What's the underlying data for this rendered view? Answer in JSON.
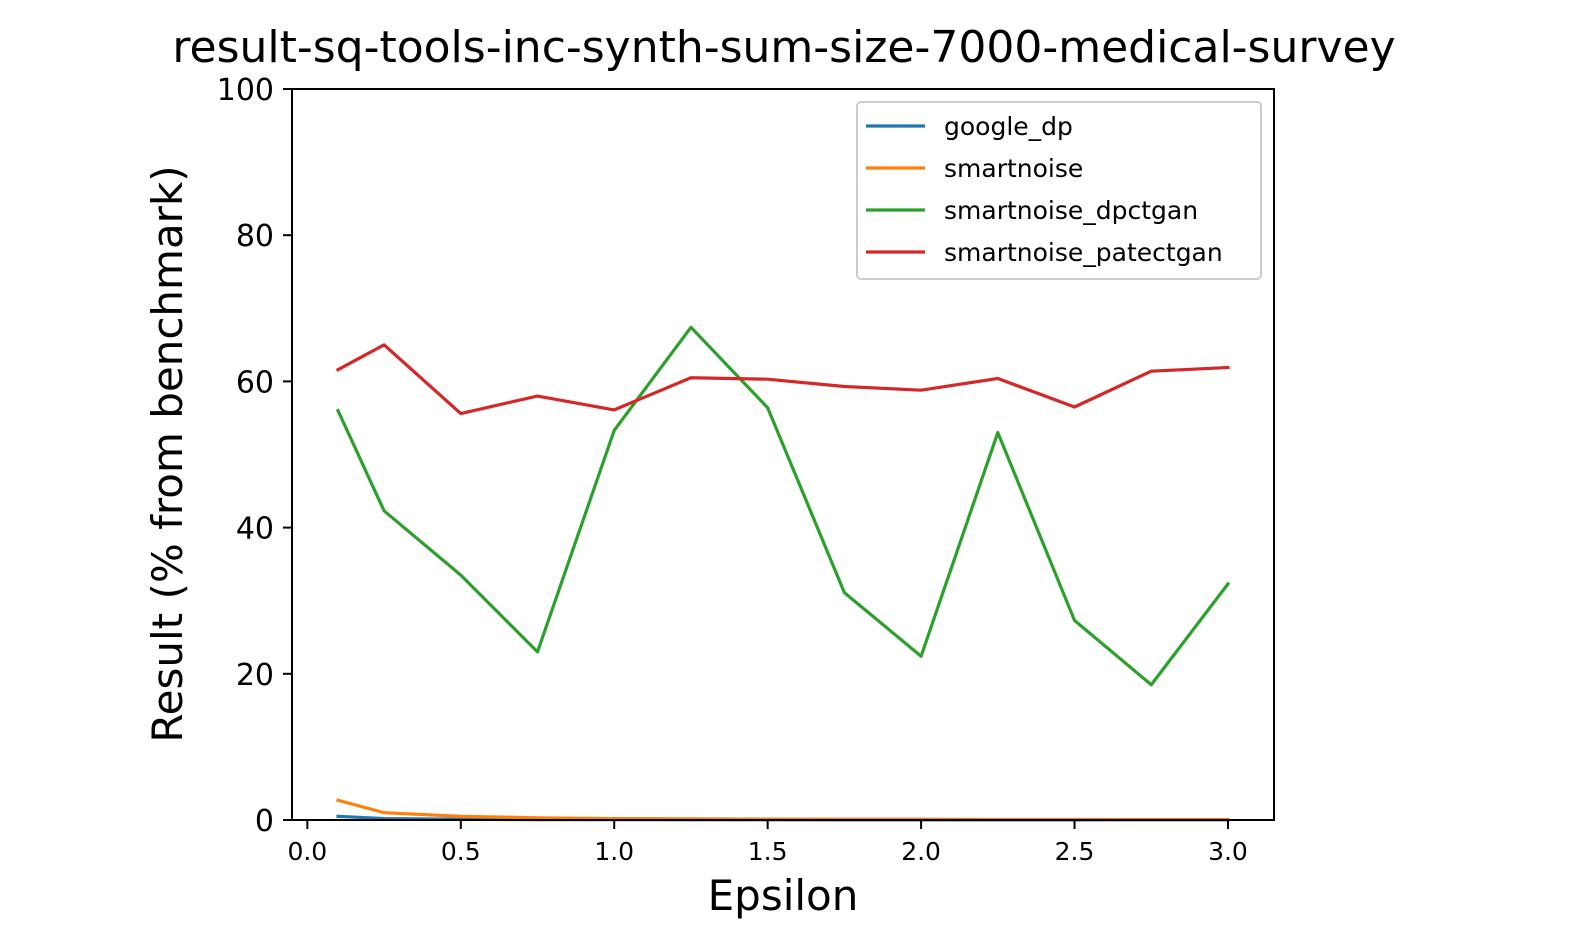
{
  "chart_data": {
    "type": "line",
    "title": "result-sq-tools-inc-synth-sum-size-7000-medical-survey",
    "xlabel": "Epsilon",
    "ylabel": "Result (% from benchmark)",
    "xlim": [
      -0.05,
      3.15
    ],
    "ylim": [
      0,
      100
    ],
    "xticks": [
      0.0,
      0.5,
      1.0,
      1.5,
      2.0,
      2.5,
      3.0
    ],
    "xtick_labels": [
      "0.0",
      "0.5",
      "1.0",
      "1.5",
      "2.0",
      "2.5",
      "3.0"
    ],
    "yticks": [
      0,
      20,
      40,
      60,
      80,
      100
    ],
    "ytick_labels": [
      "0",
      "20",
      "40",
      "60",
      "80",
      "100"
    ],
    "grid": false,
    "legend_position": "upper-right",
    "x": [
      0.1,
      0.25,
      0.5,
      0.75,
      1.0,
      1.25,
      1.5,
      1.75,
      2.0,
      2.25,
      2.5,
      2.75,
      3.0
    ],
    "series": [
      {
        "name": "google_dp",
        "color": "#1f77b4",
        "values": [
          0.5,
          0.2,
          0.1,
          0.05,
          0.05,
          0.03,
          0.03,
          0.02,
          0.02,
          0.02,
          0.02,
          0.02,
          0.02
        ]
      },
      {
        "name": "smartnoise",
        "color": "#ff7f0e",
        "values": [
          2.7,
          1.0,
          0.5,
          0.3,
          0.2,
          0.15,
          0.12,
          0.1,
          0.1,
          0.08,
          0.08,
          0.07,
          0.07
        ]
      },
      {
        "name": "smartnoise_dpctgan",
        "color": "#2ca02c",
        "values": [
          56.0,
          42.3,
          33.5,
          23.0,
          53.3,
          67.4,
          56.4,
          31.1,
          22.4,
          53.0,
          27.3,
          18.5,
          32.3
        ]
      },
      {
        "name": "smartnoise_patectgan",
        "color": "#d62728",
        "values": [
          61.6,
          65.0,
          55.6,
          58.0,
          56.1,
          60.5,
          60.3,
          59.3,
          58.8,
          60.4,
          56.5,
          61.4,
          61.9
        ]
      }
    ]
  }
}
